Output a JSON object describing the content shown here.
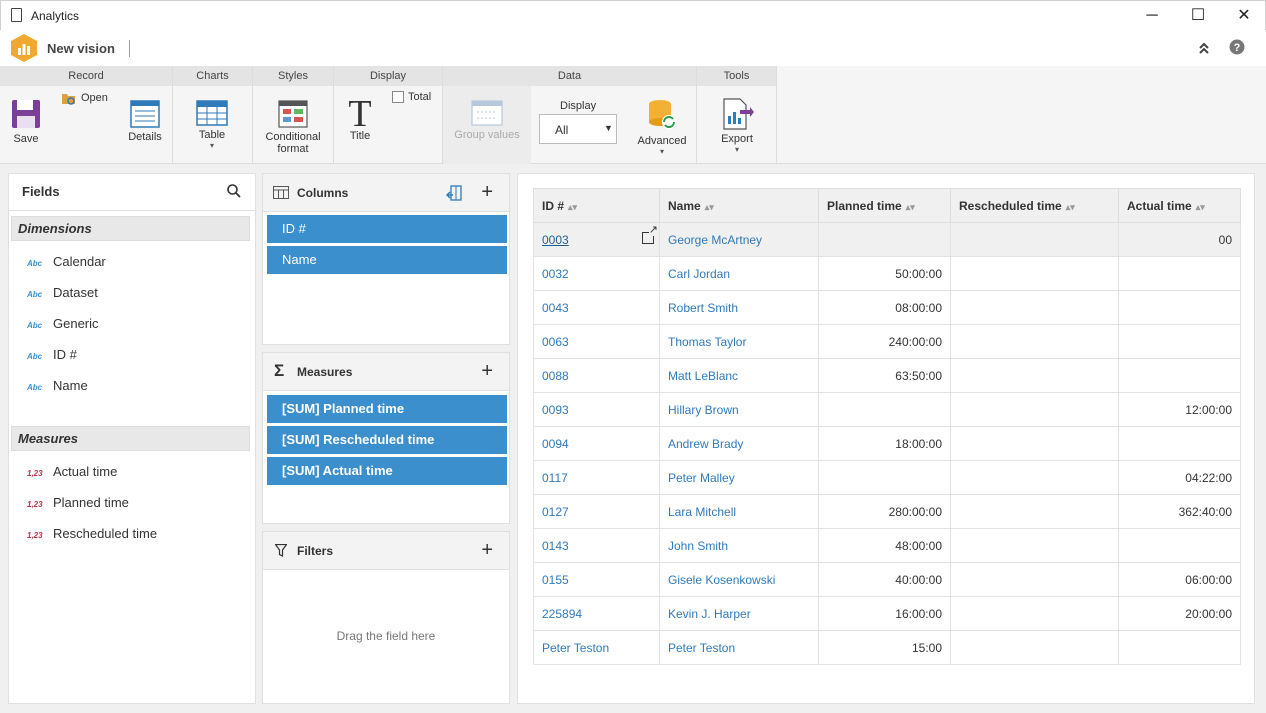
{
  "window": {
    "title": "Analytics",
    "minimize": "─",
    "maximize": "☐",
    "close": "✕"
  },
  "app": {
    "name": "New vision"
  },
  "ribbon": {
    "groups": {
      "record": "Record",
      "charts": "Charts",
      "styles": "Styles",
      "display": "Display",
      "data": "Data",
      "tools": "Tools"
    },
    "save": "Save",
    "open": "Open",
    "details": "Details",
    "table": "Table",
    "conditional_line1": "Conditional",
    "conditional_line2": "format",
    "title": "Title",
    "total": "Total",
    "group_values": "Group values",
    "display_label": "Display",
    "display_value": "All",
    "advanced": "Advanced",
    "export": "Export"
  },
  "fields": {
    "title": "Fields",
    "dimensions_title": "Dimensions",
    "dimension_type": "Abc",
    "dimensions": [
      "Calendar",
      "Dataset",
      "Generic",
      "ID #",
      "Name"
    ],
    "measures_title": "Measures",
    "measure_type": "1,23",
    "measures": [
      "Actual time",
      "Planned time",
      "Rescheduled time"
    ]
  },
  "columns_panel": {
    "title": "Columns",
    "items": [
      "ID #",
      "Name"
    ]
  },
  "measures_panel": {
    "title": "Measures",
    "items": [
      "[SUM] Planned time",
      "[SUM] Rescheduled time",
      "[SUM] Actual time"
    ]
  },
  "filters_panel": {
    "title": "Filters",
    "placeholder": "Drag the field here"
  },
  "grid": {
    "headers": [
      "ID #",
      "Name",
      "Planned time",
      "Rescheduled time",
      "Actual time"
    ],
    "rows": [
      [
        "0003",
        "George McArtney",
        "",
        "",
        "00"
      ],
      [
        "0032",
        "Carl Jordan",
        "50:00:00",
        "",
        ""
      ],
      [
        "0043",
        "Robert Smith",
        "08:00:00",
        "",
        ""
      ],
      [
        "0063",
        "Thomas Taylor",
        "240:00:00",
        "",
        ""
      ],
      [
        "0088",
        "Matt LeBlanc",
        "63:50:00",
        "",
        ""
      ],
      [
        "0093",
        "Hillary Brown",
        "",
        "",
        "12:00:00"
      ],
      [
        "0094",
        "Andrew Brady",
        "18:00:00",
        "",
        ""
      ],
      [
        "0117",
        "Peter Malley",
        "",
        "",
        "04:22:00"
      ],
      [
        "0127",
        "Lara Mitchell",
        "280:00:00",
        "",
        "362:40:00"
      ],
      [
        "0143",
        "John Smith",
        "48:00:00",
        "",
        ""
      ],
      [
        "0155",
        "Gisele Kosenkowski",
        "40:00:00",
        "",
        "06:00:00"
      ],
      [
        "225894",
        "Kevin J. Harper",
        "16:00:00",
        "",
        "20:00:00"
      ],
      [
        "Peter Teston",
        "Peter Teston",
        "15:00",
        "",
        ""
      ]
    ]
  }
}
